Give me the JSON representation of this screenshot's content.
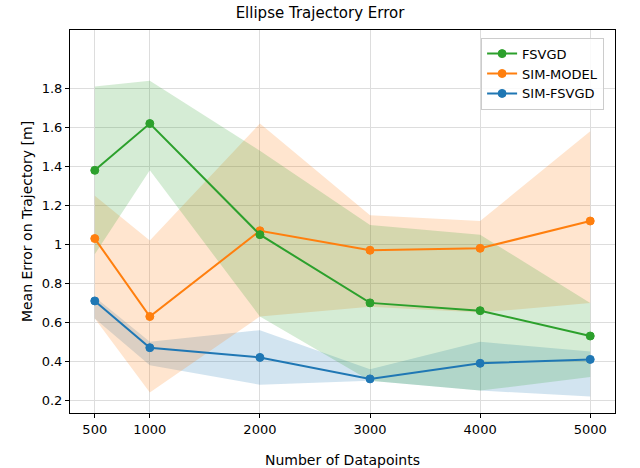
{
  "chart_data": {
    "type": "line",
    "title": "Ellipse Trajectory Error",
    "x_label": "Number of Datapoints",
    "y_label": "Mean Error on Trajectory [m]",
    "x": [
      500,
      1000,
      2000,
      3000,
      4000,
      5000
    ],
    "xlim": [
      275,
      5225
    ],
    "xticks": [
      500,
      1000,
      2000,
      3000,
      4000,
      5000
    ],
    "ylim": [
      0.135,
      2.1
    ],
    "yticks": [
      0.2,
      0.4,
      0.6,
      0.8,
      1.0,
      1.2,
      1.4,
      1.6,
      1.8
    ],
    "grid": true,
    "legend": "upper right",
    "marker": "circle",
    "series": [
      {
        "name": "SIM-FSVGD",
        "color": "#1f77b4",
        "values": [
          0.71,
          0.47,
          0.42,
          0.31,
          0.39,
          0.41
        ],
        "lower": [
          0.62,
          0.38,
          0.28,
          0.3,
          0.25,
          0.22
        ],
        "upper": [
          0.73,
          0.5,
          0.56,
          0.36,
          0.5,
          0.45
        ]
      },
      {
        "name": "SIM-MODEL",
        "color": "#ff7f0e",
        "values": [
          1.03,
          0.63,
          1.07,
          0.97,
          0.98,
          1.12
        ],
        "lower": [
          0.62,
          0.24,
          0.63,
          0.68,
          0.65,
          0.7
        ],
        "upper": [
          1.25,
          1.02,
          1.62,
          1.15,
          1.12,
          1.58
        ]
      },
      {
        "name": "FSVGD",
        "color": "#2ca02c",
        "values": [
          1.38,
          1.62,
          1.05,
          0.7,
          0.66,
          0.53
        ],
        "lower": [
          0.95,
          1.38,
          0.63,
          0.3,
          0.25,
          0.32
        ],
        "upper": [
          1.81,
          1.84,
          1.48,
          1.1,
          1.05,
          0.7
        ]
      }
    ]
  }
}
